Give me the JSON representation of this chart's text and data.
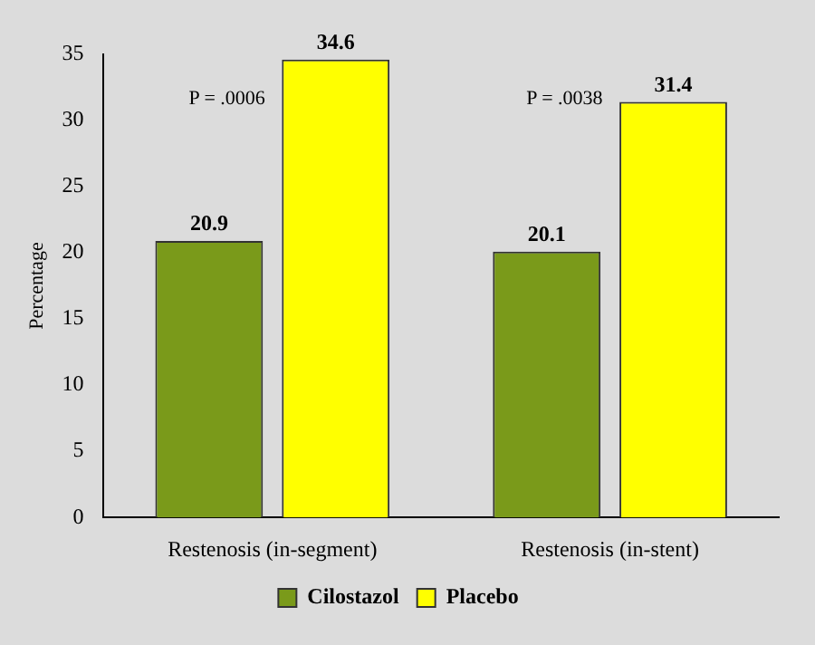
{
  "chart_data": {
    "type": "bar",
    "ylabel": "Percentage",
    "categories": [
      "Restenosis (in-segment)",
      "Restenosis (in-stent)"
    ],
    "series": [
      {
        "name": "Cilostazol",
        "color": "#7a9a1a",
        "values": [
          20.9,
          20.1
        ]
      },
      {
        "name": "Placebo",
        "color": "#ffff00",
        "values": [
          34.6,
          31.4
        ]
      }
    ],
    "ylim": [
      0,
      35
    ],
    "yticks": [
      0,
      5,
      10,
      15,
      20,
      25,
      30,
      35
    ],
    "data_labels": true,
    "legend": "bottom",
    "grid": false,
    "annotations": [
      "P = .0006",
      "P = .0038"
    ]
  }
}
